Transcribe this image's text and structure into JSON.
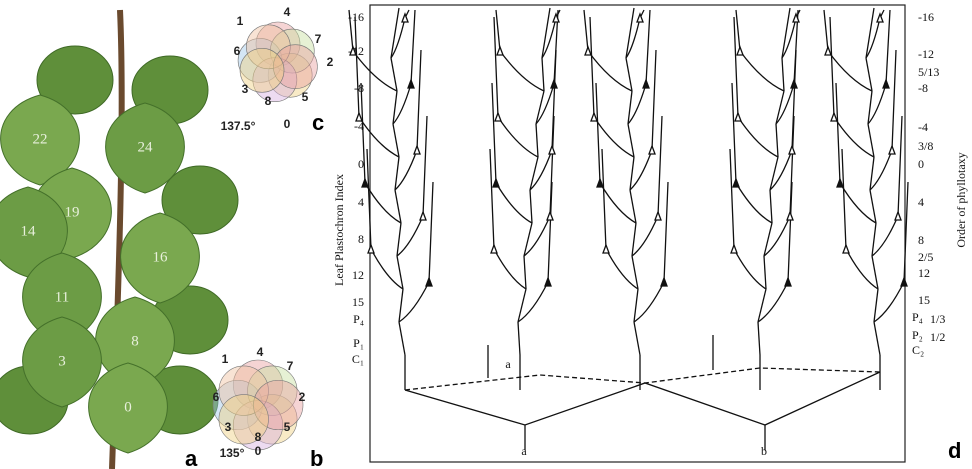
{
  "panels": {
    "a": {
      "label": "a",
      "leaf_numbers": [
        "22",
        "24",
        "19",
        "14",
        "16",
        "11",
        "8",
        "3",
        "0"
      ]
    },
    "b": {
      "label": "b",
      "positions": [
        "1",
        "4",
        "7",
        "6",
        "2",
        "3",
        "8",
        "5",
        "0"
      ],
      "angle": "135°"
    },
    "c": {
      "label": "c",
      "positions": [
        "1",
        "4",
        "7",
        "6",
        "2",
        "3",
        "8",
        "5",
        "0"
      ],
      "angle": "137.5°"
    },
    "d": {
      "label": "d",
      "left_axis_title": "Leaf Plastochron Index",
      "left_ticks": [
        "-16",
        "-12",
        "-8",
        "-4",
        "0",
        "4",
        "8",
        "12",
        "15",
        "P₄",
        "P₁",
        "C₁"
      ],
      "right_axis_title": "Order of phyllotaxy",
      "right_ticks": [
        "-16",
        "-12",
        "5/13",
        "-8",
        "-4",
        "3/8",
        "0",
        "4",
        "8",
        "2/5",
        "12",
        "15",
        "P₄",
        "1/3",
        "P₂",
        "1/2",
        "C₂"
      ],
      "branch_labels": [
        "a",
        "a",
        "b"
      ]
    }
  }
}
